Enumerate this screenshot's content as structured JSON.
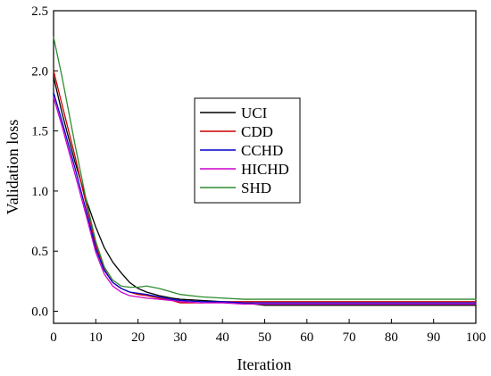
{
  "chart_data": {
    "type": "line",
    "title": "",
    "xlabel": "Iteration",
    "ylabel": "Validation loss",
    "xlim": [
      0,
      100
    ],
    "ylim": [
      -0.1,
      2.5
    ],
    "xticks": [
      0,
      10,
      20,
      30,
      40,
      50,
      60,
      70,
      80,
      90,
      100
    ],
    "yticks": [
      0.0,
      0.5,
      1.0,
      1.5,
      2.0,
      2.5
    ],
    "xtick_labels": [
      "0",
      "10",
      "20",
      "30",
      "40",
      "50",
      "60",
      "70",
      "80",
      "90",
      "100"
    ],
    "ytick_labels": [
      "0.0",
      "0.5",
      "1.0",
      "1.5",
      "2.0",
      "2.5"
    ],
    "grid": false,
    "legend": "center",
    "x": [
      0,
      2,
      5,
      8,
      10,
      12,
      14,
      16,
      18,
      20,
      22,
      25,
      28,
      30,
      35,
      40,
      45,
      50,
      60,
      70,
      80,
      90,
      100
    ],
    "series": [
      {
        "name": "UCI",
        "color": "#000000",
        "values": [
          1.95,
          1.65,
          1.25,
          0.9,
          0.7,
          0.53,
          0.41,
          0.32,
          0.24,
          0.19,
          0.16,
          0.13,
          0.11,
          0.1,
          0.09,
          0.08,
          0.07,
          0.05,
          0.05,
          0.05,
          0.05,
          0.05,
          0.05
        ]
      },
      {
        "name": "CDD",
        "color": "#cc0000",
        "values": [
          2.0,
          1.72,
          1.3,
          0.85,
          0.55,
          0.35,
          0.24,
          0.19,
          0.16,
          0.14,
          0.13,
          0.11,
          0.09,
          0.07,
          0.07,
          0.08,
          0.08,
          0.08,
          0.08,
          0.08,
          0.08,
          0.08,
          0.08
        ]
      },
      {
        "name": "CCHD",
        "color": "#0000cc",
        "values": [
          1.82,
          1.58,
          1.2,
          0.8,
          0.52,
          0.34,
          0.24,
          0.19,
          0.16,
          0.15,
          0.14,
          0.12,
          0.1,
          0.09,
          0.08,
          0.08,
          0.07,
          0.07,
          0.07,
          0.07,
          0.07,
          0.07,
          0.07
        ]
      },
      {
        "name": "HICHD",
        "color": "#cc00cc",
        "values": [
          1.78,
          1.54,
          1.15,
          0.76,
          0.49,
          0.31,
          0.21,
          0.16,
          0.13,
          0.12,
          0.11,
          0.1,
          0.09,
          0.08,
          0.07,
          0.07,
          0.06,
          0.06,
          0.06,
          0.06,
          0.06,
          0.06,
          0.06
        ]
      },
      {
        "name": "SHD",
        "color": "#2e8b2e",
        "values": [
          2.28,
          1.95,
          1.4,
          0.88,
          0.58,
          0.37,
          0.26,
          0.21,
          0.2,
          0.2,
          0.21,
          0.19,
          0.16,
          0.14,
          0.12,
          0.11,
          0.1,
          0.1,
          0.1,
          0.1,
          0.1,
          0.1,
          0.1
        ]
      }
    ]
  }
}
